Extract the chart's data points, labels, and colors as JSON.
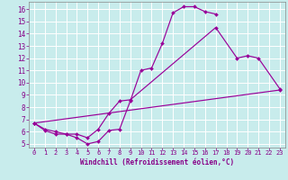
{
  "bg_color": "#c8ecec",
  "grid_color": "#ffffff",
  "line_color": "#990099",
  "xlabel": "Windchill (Refroidissement éolien,°C)",
  "xlim": [
    -0.5,
    23.5
  ],
  "ylim": [
    4.7,
    16.6
  ],
  "xticks": [
    0,
    1,
    2,
    3,
    4,
    5,
    6,
    7,
    8,
    9,
    10,
    11,
    12,
    13,
    14,
    15,
    16,
    17,
    18,
    19,
    20,
    21,
    22,
    23
  ],
  "yticks": [
    5,
    6,
    7,
    8,
    9,
    10,
    11,
    12,
    13,
    14,
    15,
    16
  ],
  "line1_x": [
    0,
    1,
    2,
    3,
    4,
    5,
    6,
    7,
    8,
    9,
    10,
    11,
    12,
    13,
    14,
    15,
    16,
    17
  ],
  "line1_y": [
    6.7,
    6.1,
    5.8,
    5.8,
    5.5,
    5.0,
    5.2,
    6.1,
    6.2,
    8.5,
    11.0,
    11.2,
    13.2,
    15.7,
    16.2,
    16.2,
    15.8,
    15.6
  ],
  "line2_x": [
    0,
    1,
    2,
    3,
    4,
    5,
    6,
    7,
    8,
    9,
    17,
    19,
    20,
    21,
    23
  ],
  "line2_y": [
    6.7,
    6.2,
    6.0,
    5.8,
    5.8,
    5.5,
    6.2,
    7.5,
    8.5,
    8.6,
    14.5,
    12.0,
    12.2,
    12.0,
    9.5
  ],
  "line3_x": [
    0,
    23
  ],
  "line3_y": [
    6.7,
    9.4
  ],
  "tick_color": "#880088",
  "xlabel_fontsize": 5.5,
  "tick_fontsize": 5.0,
  "ytick_fontsize": 5.5
}
